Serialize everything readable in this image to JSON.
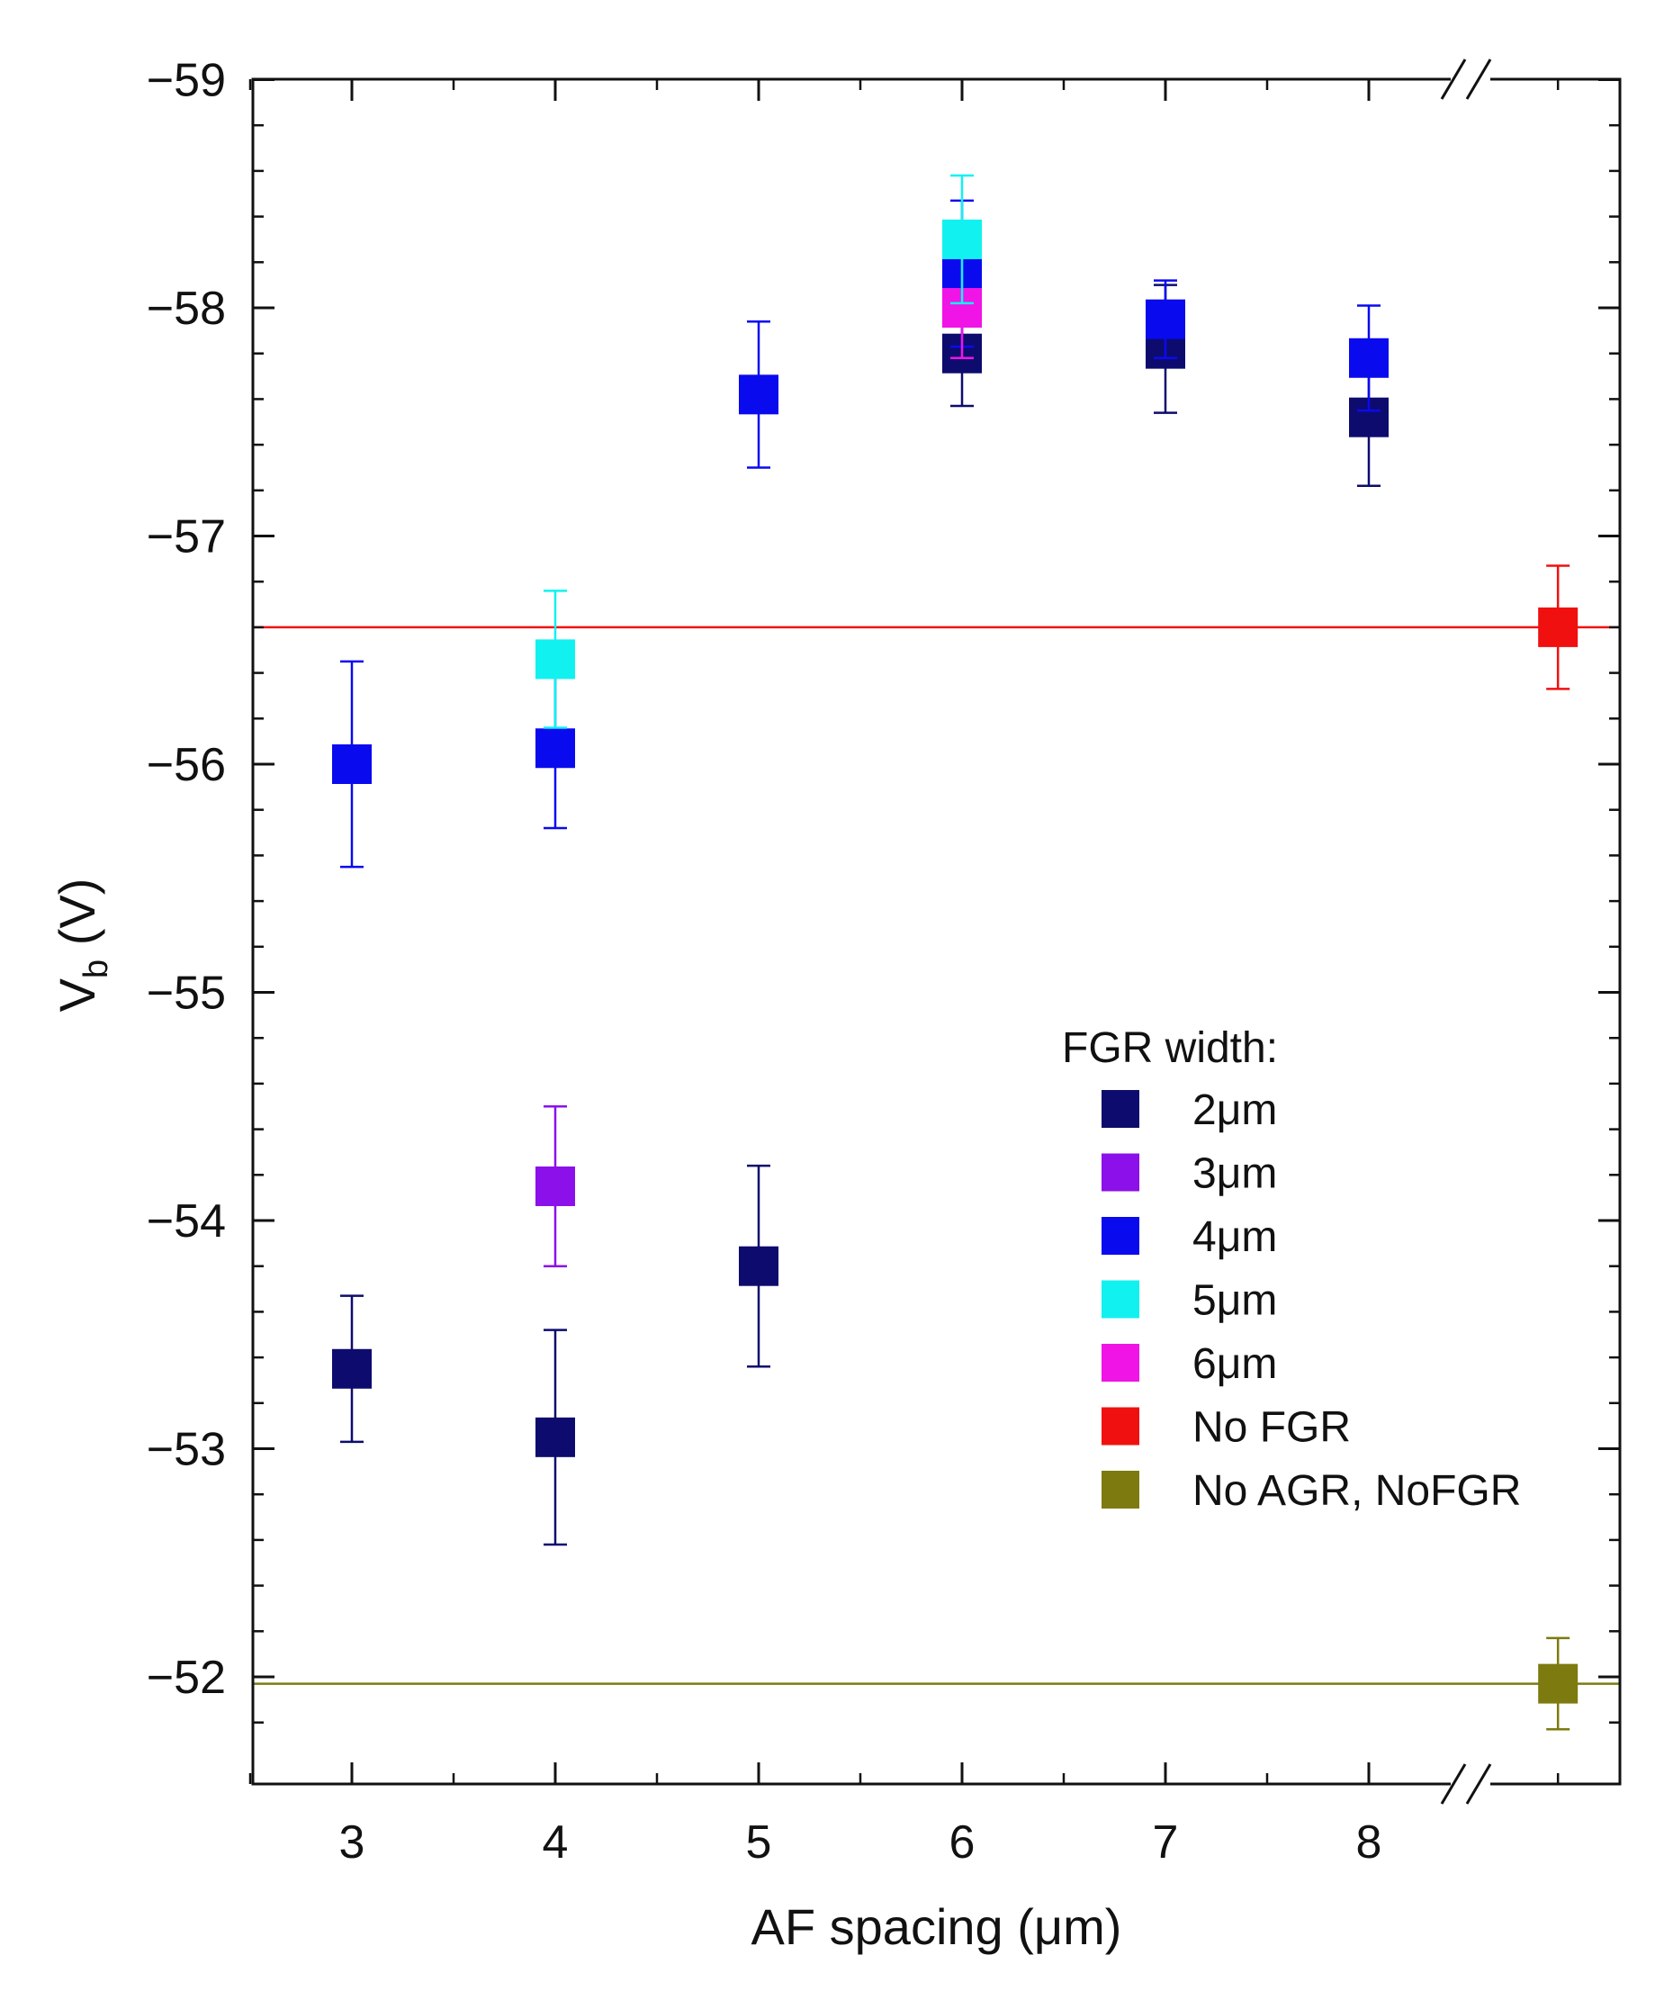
{
  "chart_data": {
    "type": "scatter",
    "title": "",
    "xlabel": "AF spacing (μm)",
    "ylabel_main": "V",
    "ylabel_sub": "b",
    "ylabel_unit": " (V)",
    "xlim": [
      2.5,
      9.2
    ],
    "ylim": [
      -51.5,
      -59
    ],
    "y_inverted": true,
    "x_ticks": [
      3,
      4,
      5,
      6,
      7,
      8
    ],
    "x_tick_labels": [
      "3",
      "4",
      "5",
      "6",
      "7",
      "8"
    ],
    "y_ticks": [
      -52,
      -53,
      -54,
      -55,
      -56,
      -57,
      -58,
      -59
    ],
    "y_tick_labels": [
      "−52",
      "−53",
      "−54",
      "−55",
      "−56",
      "−57",
      "−58",
      "−59"
    ],
    "axis_break_x": 8.5,
    "legend_title": "FGR width:",
    "legend_position": "right-middle",
    "series": [
      {
        "name": "2μm",
        "color": "#0d0b6e",
        "x": [
          3,
          4,
          5,
          6,
          7,
          8
        ],
        "y": [
          -53.35,
          -53.05,
          -53.8,
          -57.8,
          -57.82,
          -57.52
        ],
        "err": [
          0.32,
          0.47,
          0.44,
          0.23,
          0.28,
          0.3
        ]
      },
      {
        "name": "3μm",
        "color": "#8b10ea",
        "x": [
          4
        ],
        "y": [
          -54.15
        ],
        "err": [
          0.35
        ]
      },
      {
        "name": "4μm",
        "color": "#0a0aef",
        "x": [
          3,
          4,
          5,
          6,
          7,
          8
        ],
        "y": [
          -56.0,
          -56.07,
          -57.62,
          -58.15,
          -57.95,
          -57.78
        ],
        "err": [
          0.45,
          0.35,
          0.32,
          0.32,
          0.17,
          0.23
        ]
      },
      {
        "name": "5μm",
        "color": "#11f2f0",
        "x": [
          4,
          6
        ],
        "y": [
          -56.46,
          -58.3
        ],
        "err": [
          0.3,
          0.28
        ]
      },
      {
        "name": "6μm",
        "color": "#f014e6",
        "x": [
          6
        ],
        "y": [
          -58.0
        ],
        "err": [
          0.22
        ]
      },
      {
        "name": "No FGR",
        "color": "#f01010",
        "x": [
          8.93
        ],
        "y": [
          -56.6
        ],
        "err": [
          0.27
        ],
        "hline": -56.6
      },
      {
        "name": "No AGR, NoFGR",
        "color": "#7d7a10",
        "x": [
          8.93
        ],
        "y": [
          -51.97
        ],
        "err": [
          0.2
        ],
        "hline": -51.97
      }
    ]
  }
}
